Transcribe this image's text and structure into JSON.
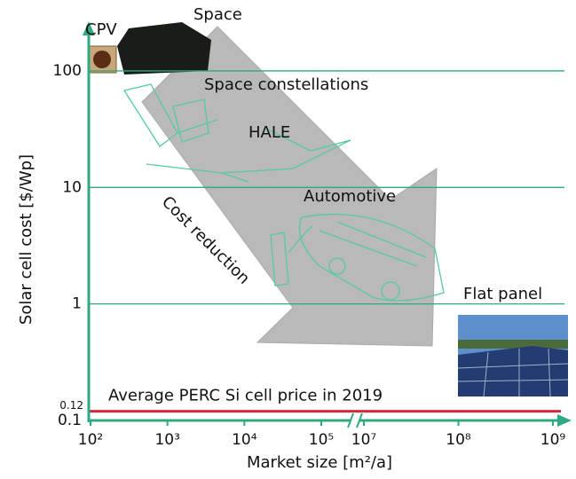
{
  "chart_data": {
    "type": "annotated",
    "y_label": "Solar cell cost [$/Wp]",
    "x_label": "Market size [m²/a]",
    "y_log": true,
    "x_log": true,
    "x_axis_break": true,
    "ylim": [
      0.1,
      240
    ],
    "yticks": [
      100,
      10,
      1,
      0.1
    ],
    "xticks": [
      {
        "value": 100,
        "label": "10²"
      },
      {
        "value": 1000,
        "label": "10³"
      },
      {
        "value": 10000,
        "label": "10⁴"
      },
      {
        "value": 100000,
        "label": "10⁵"
      },
      {
        "value": 10000000,
        "label": "10⁷"
      },
      {
        "value": 100000000,
        "label": "10⁸"
      },
      {
        "value": 1000000000,
        "label": "10⁹"
      }
    ],
    "grid": true,
    "axis_color": "#2fa983",
    "reference_line": {
      "value": 0.12,
      "label": "Average PERC Si cell price in 2019",
      "color": "#d22a3b"
    },
    "annotations": [
      "CPV",
      "Space",
      "Space constellations",
      "HALE",
      "Automotive",
      "Flat panel",
      "Cost reduction"
    ]
  }
}
